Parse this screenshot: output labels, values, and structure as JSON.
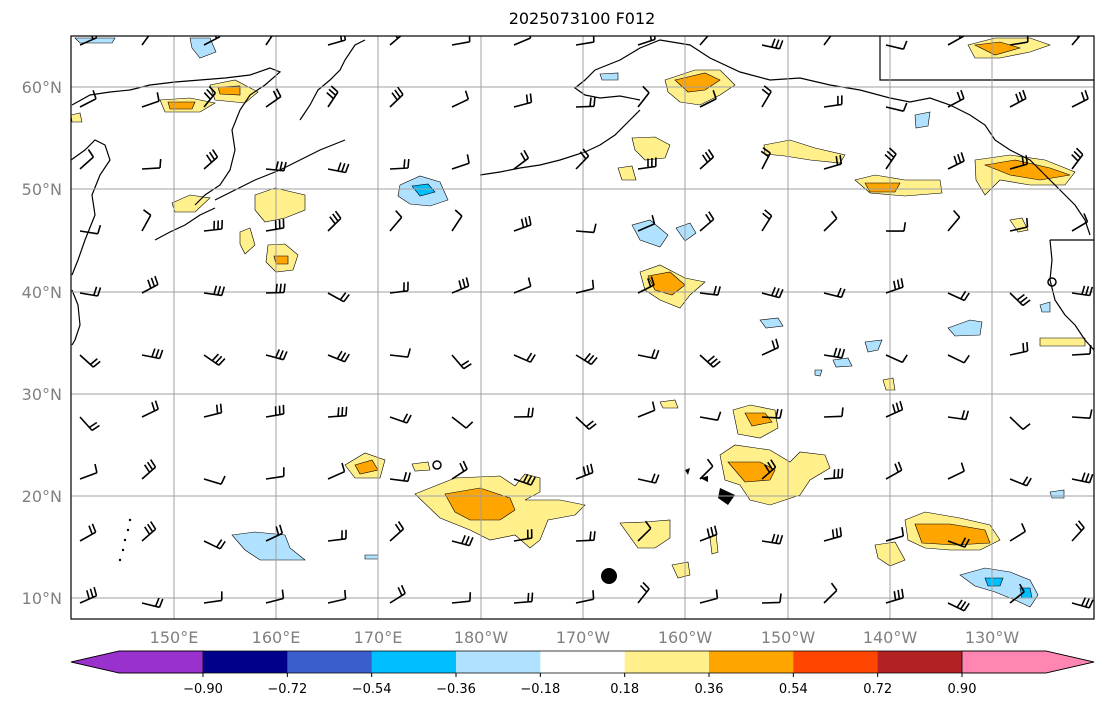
{
  "title": "2025073100 F012",
  "map": {
    "lat_range": [
      8,
      65
    ],
    "lon_range": [
      140,
      240
    ],
    "lat_ticks": [
      "60°N",
      "50°N",
      "40°N",
      "30°N",
      "20°N",
      "10°N"
    ],
    "lon_ticks": [
      "150°E",
      "160°E",
      "170°E",
      "180°W",
      "170°W",
      "160°W",
      "150°W",
      "140°W",
      "130°W"
    ],
    "grid": true
  },
  "colorbar": {
    "ticks": [
      "−0.90",
      "−0.72",
      "−0.54",
      "−0.36",
      "−0.18",
      "0.18",
      "0.36",
      "0.54",
      "0.72",
      "0.90"
    ],
    "colors": [
      "#9932cc",
      "#00008b",
      "#3a5fcd",
      "#00bfff",
      "#b0e2ff",
      "#ffffff",
      "#fff08c",
      "#ffa500",
      "#ff4500",
      "#b22222",
      "#ff86b2"
    ]
  }
}
